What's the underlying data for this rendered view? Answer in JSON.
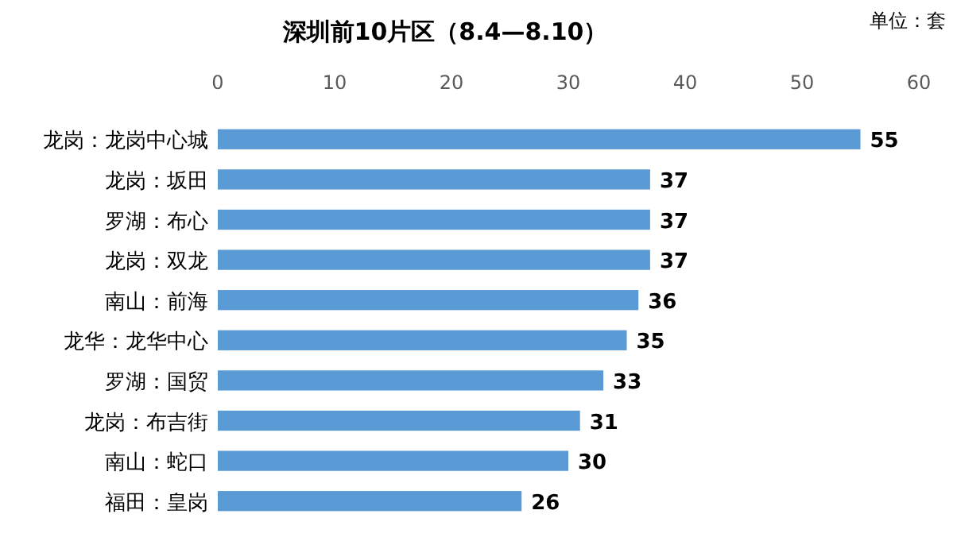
{
  "chart_data": {
    "type": "bar",
    "orientation": "horizontal",
    "title": "深圳前10片区（8.4—8.10）",
    "annotations": [
      "单位：套"
    ],
    "categories": [
      "龙岗：龙岗中心城",
      "龙岗：坂田",
      "罗湖：布心",
      "龙岗：双龙",
      "南山：前海",
      "龙华：龙华中心",
      "罗湖：国贸",
      "龙岗：布吉街",
      "南山：蛇口",
      "福田：皇岗"
    ],
    "values": [
      55,
      37,
      37,
      37,
      36,
      35,
      33,
      31,
      30,
      26
    ],
    "color": "#5b9bd5",
    "xlim": [
      0,
      60
    ],
    "xticks": [
      0,
      10,
      20,
      30,
      40,
      50,
      60
    ],
    "data_labels": true,
    "grid": false
  }
}
